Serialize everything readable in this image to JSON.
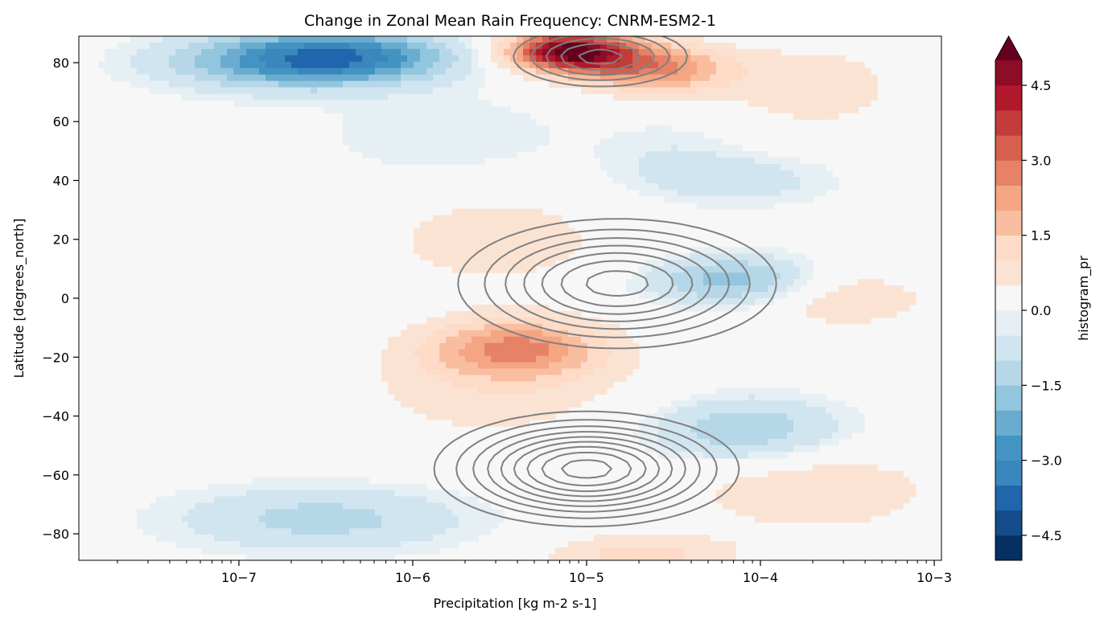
{
  "chart_data": {
    "type": "heatmap",
    "title": "Change in Zonal Mean Rain Frequency: CNRM-ESM2-1",
    "xlabel": "Precipitation [kg m-2 s-1]",
    "ylabel": "Latitude [degrees_north]",
    "x_scale": "log",
    "xlim": [
      1.2e-08,
      0.0011
    ],
    "ylim": [
      -89,
      89
    ],
    "x_ticks": [
      {
        "value": 1e-07,
        "label": "10−7"
      },
      {
        "value": 1e-06,
        "label": "10−6"
      },
      {
        "value": 1e-05,
        "label": "10−5"
      },
      {
        "value": 0.0001,
        "label": "10−4"
      },
      {
        "value": 0.001,
        "label": "10−3"
      }
    ],
    "y_ticks": [
      {
        "value": 80,
        "label": "80"
      },
      {
        "value": 60,
        "label": "60"
      },
      {
        "value": 40,
        "label": "40"
      },
      {
        "value": 20,
        "label": "20"
      },
      {
        "value": 0,
        "label": "0"
      },
      {
        "value": -20,
        "label": "−20"
      },
      {
        "value": -40,
        "label": "−40"
      },
      {
        "value": -60,
        "label": "−60"
      },
      {
        "value": -80,
        "label": "−80"
      }
    ],
    "grid": false,
    "colorbar": {
      "label": "histogram_pr",
      "colormap": "RdBu_r",
      "vmin": -5.0,
      "vmax": 5.0,
      "step": 0.5,
      "extend": "max",
      "ticks": [
        {
          "value": 4.5,
          "label": "4.5"
        },
        {
          "value": 3.0,
          "label": "3.0"
        },
        {
          "value": 1.5,
          "label": "1.5"
        },
        {
          "value": 0.0,
          "label": "0.0"
        },
        {
          "value": -1.5,
          "label": "−1.5"
        },
        {
          "value": -3.0,
          "label": "−3.0"
        },
        {
          "value": -4.5,
          "label": "−4.5"
        }
      ]
    },
    "filled_features": [
      {
        "x": 4e-07,
        "y": 82,
        "sx": 0.45,
        "sy": 6,
        "value": -2.8
      },
      {
        "x": 1.5e-07,
        "y": 80,
        "sx": 0.5,
        "sy": 7,
        "value": -1.5
      },
      {
        "x": 8e-06,
        "y": 84,
        "sx": 0.25,
        "sy": 5,
        "value": 5.2
      },
      {
        "x": 2.5e-05,
        "y": 78,
        "sx": 0.3,
        "sy": 6,
        "value": 2.6
      },
      {
        "x": 0.0002,
        "y": 72,
        "sx": 0.35,
        "sy": 10,
        "value": 0.9
      },
      {
        "x": 3e-06,
        "y": 20,
        "sx": 0.5,
        "sy": 12,
        "value": 0.8
      },
      {
        "x": 4e-06,
        "y": -17,
        "sx": 0.35,
        "sy": 7,
        "value": 2.3
      },
      {
        "x": 3e-06,
        "y": -30,
        "sx": 0.6,
        "sy": 14,
        "value": 0.8
      },
      {
        "x": 0.0003,
        "y": 0,
        "sx": 0.35,
        "sy": 7,
        "value": 1.0
      },
      {
        "x": 7e-05,
        "y": 6,
        "sx": 0.35,
        "sy": 6,
        "value": -1.8
      },
      {
        "x": 7e-05,
        "y": 40,
        "sx": 0.4,
        "sy": 6,
        "value": -0.8
      },
      {
        "x": 8e-05,
        "y": -45,
        "sx": 0.4,
        "sy": 8,
        "value": -1.5
      },
      {
        "x": 0.0002,
        "y": -65,
        "sx": 0.5,
        "sy": 10,
        "value": 1.0
      },
      {
        "x": 3e-07,
        "y": -75,
        "sx": 0.6,
        "sy": 8,
        "value": -1.2
      },
      {
        "x": 2e-05,
        "y": -87,
        "sx": 0.4,
        "sy": 5,
        "value": 1.2
      },
      {
        "x": 1.5e-06,
        "y": 55,
        "sx": 0.5,
        "sy": 10,
        "value": -0.5
      },
      {
        "x": 3e-05,
        "y": 50,
        "sx": 0.3,
        "sy": 8,
        "value": -0.4
      }
    ],
    "contour_features": [
      {
        "x": 1e-05,
        "y": -58,
        "sx": 0.45,
        "sy": 10,
        "amp": 1.0
      },
      {
        "x": 1.5e-05,
        "y": 5,
        "sx": 0.5,
        "sy": 12,
        "amp": 0.8
      },
      {
        "x": 1.2e-05,
        "y": 82,
        "sx": 0.3,
        "sy": 6,
        "amp": 0.6
      }
    ],
    "contour_levels": [
      0.15,
      0.25,
      0.35,
      0.45,
      0.55,
      0.65,
      0.75,
      0.85,
      0.95
    ]
  }
}
